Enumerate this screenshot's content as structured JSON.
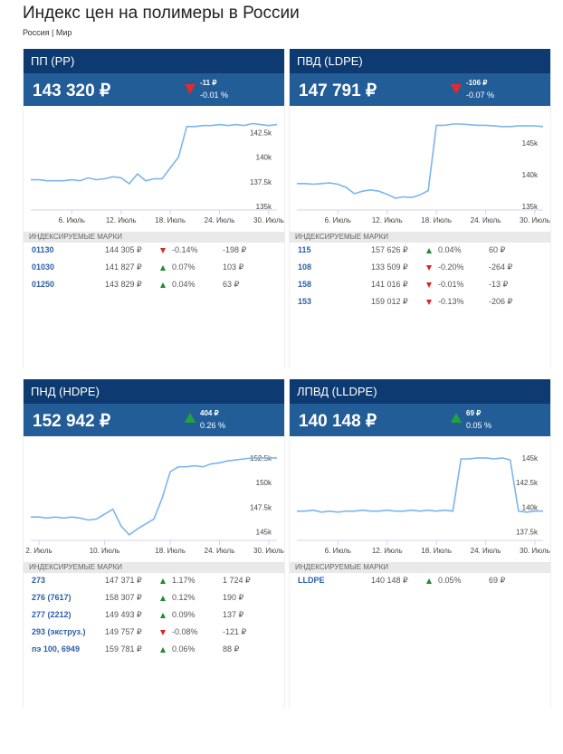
{
  "page": {
    "title": "Индекс цен на полимеры в России",
    "region": "Россия | Мир"
  },
  "cards": [
    {
      "title": "ПП (PP)",
      "price": "143 320 ₽",
      "change_abs": "-11 ₽",
      "change_pct": "-0.01 %",
      "direction": "down",
      "index_title": "ИНДЕКСИРУЕМЫЕ МАРКИ",
      "rows": [
        {
          "code": "01130",
          "price": "144 305 ₽",
          "dir": "down",
          "pct": "-0.14%",
          "abs": "-198 ₽"
        },
        {
          "code": "01030",
          "price": "141 827 ₽",
          "dir": "up",
          "pct": "0.07%",
          "abs": "103 ₽"
        },
        {
          "code": "01250",
          "price": "143 829 ₽",
          "dir": "up",
          "pct": "0.04%",
          "abs": "63 ₽"
        }
      ]
    },
    {
      "title": "ПВД (LDPE)",
      "price": "147 791 ₽",
      "change_abs": "-106 ₽",
      "change_pct": "-0.07 %",
      "direction": "down",
      "index_title": "ИНДЕКСИРУЕМЫЕ МАРКИ",
      "rows": [
        {
          "code": "115",
          "price": "157 626 ₽",
          "dir": "up",
          "pct": "0.04%",
          "abs": "60 ₽"
        },
        {
          "code": "108",
          "price": "133 509 ₽",
          "dir": "down",
          "pct": "-0.20%",
          "abs": "-264 ₽"
        },
        {
          "code": "158",
          "price": "141 016 ₽",
          "dir": "down",
          "pct": "-0.01%",
          "abs": "-13 ₽"
        },
        {
          "code": "153",
          "price": "159 012 ₽",
          "dir": "down",
          "pct": "-0.13%",
          "abs": "-206 ₽"
        }
      ]
    },
    {
      "title": "ПНД (HDPE)",
      "price": "152 942 ₽",
      "change_abs": "404 ₽",
      "change_pct": "0.26 %",
      "direction": "up",
      "index_title": "ИНДЕКСИРУЕМЫЕ МАРКИ",
      "rows": [
        {
          "code": "273",
          "price": "147 371 ₽",
          "dir": "up",
          "pct": "1.17%",
          "abs": "1 724 ₽"
        },
        {
          "code": "276 (7617)",
          "price": "158 307 ₽",
          "dir": "up",
          "pct": "0.12%",
          "abs": "190 ₽"
        },
        {
          "code": "277 (2212)",
          "price": "149 493 ₽",
          "dir": "up",
          "pct": "0.09%",
          "abs": "137 ₽"
        },
        {
          "code": "293 (экструз.)",
          "price": "149 757 ₽",
          "dir": "down",
          "pct": "-0.08%",
          "abs": "-121 ₽"
        },
        {
          "code": "пэ 100, 6949",
          "price": "159 781 ₽",
          "dir": "up",
          "pct": "0.06%",
          "abs": "88 ₽"
        }
      ]
    },
    {
      "title": "ЛПВД (LLDPE)",
      "price": "140 148 ₽",
      "change_abs": "69 ₽",
      "change_pct": "0.05 %",
      "direction": "up",
      "index_title": "ИНДЕКСИРУЕМЫЕ МАРКИ",
      "rows": [
        {
          "code": "LLDPE",
          "price": "140 148 ₽",
          "dir": "up",
          "pct": "0.05%",
          "abs": "69 ₽"
        }
      ]
    }
  ],
  "chart_data": [
    {
      "type": "line",
      "x": [
        "1. Июль",
        "2. Июль",
        "3. Июль",
        "4. Июль",
        "5. Июль",
        "6. Июль",
        "7. Июль",
        "8. Июль",
        "9. Июль",
        "10. Июль",
        "11. Июль",
        "12. Июль",
        "13. Июль",
        "14. Июль",
        "15. Июль",
        "16. Июль",
        "17. Июль",
        "18. Июль",
        "19. Июль",
        "20. Июль",
        "21. Июль",
        "22. Июль",
        "23. Июль",
        "24. Июль",
        "25. Июль",
        "26. Июль",
        "27. Июль",
        "28. Июль",
        "29. Июль",
        "30. Июль",
        "31. Июль"
      ],
      "values": [
        137.7,
        137.7,
        137.6,
        137.6,
        137.6,
        137.7,
        137.6,
        137.9,
        137.7,
        137.8,
        138.0,
        137.9,
        137.3,
        138.3,
        137.6,
        137.8,
        137.8,
        138.9,
        140.0,
        143.1,
        143.1,
        143.2,
        143.2,
        143.3,
        143.2,
        143.3,
        143.2,
        143.4,
        143.3,
        143.2,
        143.3
      ],
      "x_ticks": [
        "6. Июль",
        "12. Июль",
        "18. Июль",
        "24. Июль",
        "30. Июль"
      ],
      "y_ticks": [
        "135k",
        "137.5k",
        "140k",
        "142.5k"
      ],
      "ylim": [
        135,
        144
      ]
    },
    {
      "type": "line",
      "x": [
        "1. Июль",
        "2. Июль",
        "3. Июль",
        "4. Июль",
        "5. Июль",
        "6. Июль",
        "7. Июль",
        "8. Июль",
        "9. Июль",
        "10. Июль",
        "11. Июль",
        "12. Июль",
        "13. Июль",
        "14. Июль",
        "15. Июль",
        "16. Июль",
        "17. Июль",
        "18. Июль",
        "19. Июль",
        "20. Июль",
        "21. Июль",
        "22. Июль",
        "23. Июль",
        "24. Июль",
        "25. Июль",
        "26. Июль",
        "27. Июль",
        "28. Июль",
        "29. Июль",
        "30. Июль",
        "31. Июль"
      ],
      "values": [
        138.6,
        138.6,
        138.5,
        138.6,
        138.7,
        138.5,
        138.0,
        137.0,
        137.4,
        137.6,
        137.4,
        136.9,
        136.3,
        136.5,
        136.4,
        136.8,
        137.5,
        147.8,
        147.8,
        148.0,
        148.0,
        147.9,
        147.8,
        147.8,
        147.7,
        147.6,
        147.6,
        147.7,
        147.7,
        147.7,
        147.6
      ],
      "x_ticks": [
        "6. Июль",
        "12. Июль",
        "18. Июль",
        "24. Июль",
        "30. Июль"
      ],
      "y_ticks": [
        "135k",
        "140k",
        "145k"
      ],
      "ylim": [
        135,
        149
      ]
    },
    {
      "type": "line",
      "x": [
        "1. Июль",
        "2. Июль",
        "3. Июль",
        "4. Июль",
        "5. Июль",
        "6. Июль",
        "7. Июль",
        "8. Июль",
        "9. Июль",
        "10. Июль",
        "11. Июль",
        "12. Июль",
        "13. Июль",
        "14. Июль",
        "15. Июль",
        "16. Июль",
        "17. Июль",
        "18. Июль",
        "19. Июль",
        "20. Июль",
        "21. Июль",
        "22. Июль",
        "23. Июль",
        "24. Июль",
        "25. Июль",
        "26. Июль",
        "27. Июль",
        "28. Июль",
        "29. Июль",
        "30. Июль",
        "31. Июль"
      ],
      "values": [
        146.5,
        146.5,
        146.4,
        146.5,
        146.4,
        146.5,
        146.4,
        146.2,
        146.3,
        146.8,
        147.3,
        145.6,
        144.7,
        145.3,
        145.8,
        146.3,
        148.4,
        151.1,
        151.6,
        151.6,
        151.7,
        151.6,
        151.9,
        152.0,
        152.2,
        152.3,
        152.4,
        152.5,
        152.5,
        152.5,
        152.5
      ],
      "x_ticks": [
        "2. Июль",
        "10. Июль",
        "18. Июль",
        "24. Июль",
        "30. Июль"
      ],
      "y_ticks": [
        "145k",
        "147.5k",
        "150k",
        "152.5k"
      ],
      "ylim": [
        144.5,
        153.5
      ]
    },
    {
      "type": "line",
      "x": [
        "1. Июль",
        "2. Июль",
        "3. Июль",
        "4. Июль",
        "5. Июль",
        "6. Июль",
        "7. Июль",
        "8. Июль",
        "9. Июль",
        "10. Июль",
        "11. Июль",
        "12. Июль",
        "13. Июль",
        "14. Июль",
        "15. Июль",
        "16. Июль",
        "17. Июль",
        "18. Июль",
        "19. Июль",
        "20. Июль",
        "21. Июль",
        "22. Июль",
        "23. Июль",
        "24. Июль",
        "25. Июль",
        "26. Июль",
        "27. Июль",
        "28. Июль",
        "29. Июль",
        "30. Июль",
        "31. Июль"
      ],
      "values": [
        139.6,
        139.6,
        139.7,
        139.5,
        139.6,
        139.5,
        139.6,
        139.6,
        139.7,
        139.6,
        139.6,
        139.7,
        139.6,
        139.6,
        139.7,
        139.6,
        139.7,
        139.6,
        139.7,
        139.6,
        144.9,
        144.9,
        145.0,
        145.0,
        144.9,
        145.0,
        144.8,
        139.6,
        139.5,
        139.6,
        139.6
      ],
      "x_ticks": [
        "6. Июль",
        "12. Июль",
        "18. Июль",
        "24. Июль",
        "30. Июль"
      ],
      "y_ticks": [
        "137.5k",
        "140k",
        "142.5k",
        "145k"
      ],
      "ylim": [
        137,
        146
      ]
    }
  ]
}
